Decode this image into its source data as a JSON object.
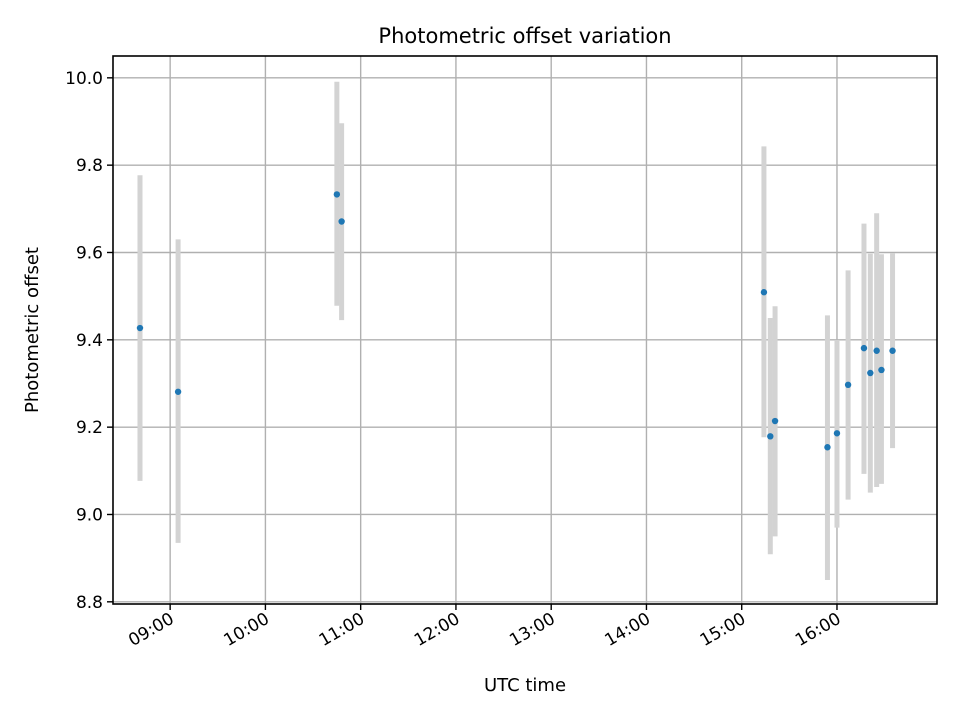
{
  "chart_data": {
    "type": "scatter",
    "title": "Photometric offset variation",
    "xlabel": "UTC time",
    "ylabel": "Photometric offset",
    "x_tick_labels": [
      "09:00",
      "10:00",
      "11:00",
      "12:00",
      "13:00",
      "14:00",
      "15:00",
      "16:00"
    ],
    "x_tick_values": [
      "09:00",
      "10:00",
      "11:00",
      "12:00",
      "13:00",
      "14:00",
      "15:00",
      "16:00"
    ],
    "xlim": [
      "08:24",
      "17:03"
    ],
    "y_tick_labels": [
      "8.8",
      "9.0",
      "9.2",
      "9.4",
      "9.6",
      "9.8",
      "10.0"
    ],
    "y_tick_values": [
      8.8,
      9.0,
      9.2,
      9.4,
      9.6,
      9.8,
      10.0
    ],
    "ylim": [
      8.795,
      10.05
    ],
    "grid": true,
    "marker_color": "#1f77b4",
    "errorbar_color": "#d3d3d3",
    "points": [
      {
        "x": "08:41",
        "y": 9.427,
        "ylow": 9.077,
        "yhigh": 9.777
      },
      {
        "x": "09:05",
        "y": 9.281,
        "ylow": 8.935,
        "yhigh": 9.63
      },
      {
        "x": "10:45",
        "y": 9.733,
        "ylow": 9.478,
        "yhigh": 9.991
      },
      {
        "x": "10:48",
        "y": 9.671,
        "ylow": 9.445,
        "yhigh": 9.896
      },
      {
        "x": "15:14",
        "y": 9.509,
        "ylow": 9.177,
        "yhigh": 9.843
      },
      {
        "x": "15:18",
        "y": 9.179,
        "ylow": 8.909,
        "yhigh": 9.45
      },
      {
        "x": "15:21",
        "y": 9.214,
        "ylow": 8.95,
        "yhigh": 9.477
      },
      {
        "x": "15:54",
        "y": 9.154,
        "ylow": 8.85,
        "yhigh": 9.456
      },
      {
        "x": "16:00",
        "y": 9.186,
        "ylow": 8.97,
        "yhigh": 9.4
      },
      {
        "x": "16:07",
        "y": 9.297,
        "ylow": 9.034,
        "yhigh": 9.559
      },
      {
        "x": "16:17",
        "y": 9.381,
        "ylow": 9.093,
        "yhigh": 9.666
      },
      {
        "x": "16:21",
        "y": 9.324,
        "ylow": 9.05,
        "yhigh": 9.597
      },
      {
        "x": "16:25",
        "y": 9.375,
        "ylow": 9.063,
        "yhigh": 9.69
      },
      {
        "x": "16:28",
        "y": 9.331,
        "ylow": 9.07,
        "yhigh": 9.596
      },
      {
        "x": "16:35",
        "y": 9.375,
        "ylow": 9.152,
        "yhigh": 9.598
      }
    ]
  }
}
